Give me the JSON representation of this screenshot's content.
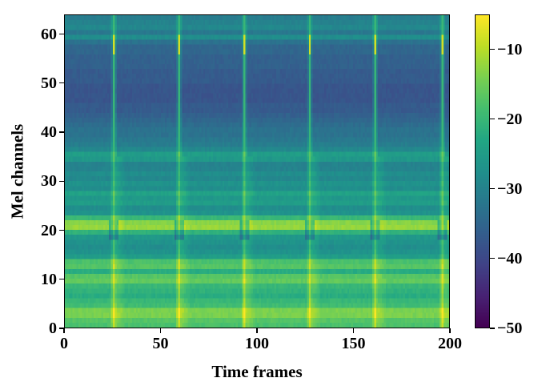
{
  "chart_data": {
    "type": "heatmap",
    "title": "",
    "xlabel": "Time frames",
    "ylabel": "Mel channels",
    "xlim": [
      0,
      200
    ],
    "ylim": [
      0,
      64
    ],
    "xticks": [
      0,
      50,
      100,
      150,
      200
    ],
    "yticks": [
      0,
      10,
      20,
      30,
      40,
      50,
      60
    ],
    "colormap": "viridis",
    "colorbar": {
      "vmin": -50,
      "vmax": -5,
      "ticks": [
        -10,
        -20,
        -30,
        -40,
        -50
      ],
      "tick_labels": [
        "−10",
        "−20",
        "−30",
        "−40",
        "−50"
      ]
    },
    "grid": false,
    "description": "Mel spectrogram with 64 mel channels over 200 time frames; bright vertical onset stripes near frames 25, 59, 93, 127, 161, 196; strong horizontal bands near channels 1-3, 9-10, 12-13 and a bright band around channel 20 (about -12 dB); upper channels 40-58 darkest (about -38 dB).",
    "onset_frames": [
      25,
      59,
      93,
      127,
      161,
      196
    ],
    "channel_profile_db": [
      -18,
      -17,
      -14,
      -14,
      -19,
      -20,
      -22,
      -21,
      -20,
      -16,
      -17,
      -22,
      -17,
      -18,
      -25,
      -27,
      -28,
      -27,
      -26,
      -21,
      -12,
      -13,
      -20,
      -27,
      -28,
      -25,
      -26,
      -24,
      -28,
      -27,
      -29,
      -28,
      -30,
      -30,
      -26,
      -25,
      -29,
      -31,
      -32,
      -33,
      -33,
      -34,
      -35,
      -36,
      -37,
      -37,
      -38,
      -38,
      -38,
      -38,
      -37,
      -37,
      -37,
      -36,
      -36,
      -36,
      -35,
      -35,
      -33,
      -28,
      -32,
      -29,
      -30,
      -31
    ]
  },
  "axes": {
    "x_tick_labels": [
      "0",
      "50",
      "100",
      "150",
      "200"
    ],
    "y_tick_labels": [
      "0",
      "10",
      "20",
      "30",
      "40",
      "50",
      "60"
    ],
    "xlabel": "Time frames",
    "ylabel": "Mel channels"
  }
}
